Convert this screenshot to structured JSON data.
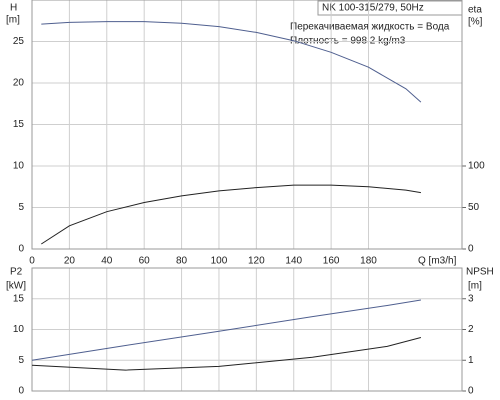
{
  "chart_data": [
    {
      "type": "line",
      "title": "NK 100-315/279, 50Hz",
      "annotations": [
        "Перекачиваемая жидкость = Вода",
        "Плотность = 998.2 kg/m3"
      ],
      "y_label": "H",
      "y_unit": "[m]",
      "y2_label": "eta",
      "y2_unit": "[%]",
      "x_label": "Q [m3/h]",
      "x": [
        5,
        20,
        40,
        60,
        80,
        100,
        120,
        140,
        160,
        180,
        200,
        208
      ],
      "series": [
        {
          "name": "H",
          "color": "#4f5f8f",
          "values": [
            27.1,
            27.3,
            27.4,
            27.4,
            27.2,
            26.8,
            26.1,
            25.1,
            23.7,
            21.9,
            19.3,
            17.7
          ]
        },
        {
          "name": "eta",
          "color": "#222222",
          "axis": "y2",
          "values": [
            6,
            28,
            45,
            56,
            64,
            70,
            74,
            77,
            77,
            75,
            71,
            68
          ]
        }
      ],
      "xlim": [
        0,
        230
      ],
      "xticks": [
        0,
        20,
        40,
        60,
        80,
        100,
        120,
        140,
        160,
        180
      ],
      "ylim": [
        0,
        30
      ],
      "yticks": [
        0,
        5,
        10,
        15,
        20,
        25
      ],
      "y2lim": [
        0,
        300
      ],
      "y2ticks": [
        0,
        50,
        100
      ],
      "grid": true
    },
    {
      "type": "line",
      "y_label": "P2",
      "y_unit": "[kW]",
      "y2_label": "NPSH",
      "y2_unit": "[m]",
      "x": [
        0,
        50,
        100,
        150,
        190,
        208
      ],
      "series": [
        {
          "name": "P2",
          "color": "#4f5f8f",
          "values": [
            5,
            7.4,
            9.7,
            12.1,
            13.9,
            14.8
          ]
        },
        {
          "name": "NPSH",
          "color": "#222222",
          "axis": "y2",
          "values": [
            0.84,
            0.68,
            0.8,
            1.1,
            1.45,
            1.74
          ]
        }
      ],
      "xlim": [
        0,
        230
      ],
      "ylim": [
        0,
        20
      ],
      "yticks": [
        0,
        5,
        10,
        15
      ],
      "y2lim": [
        0,
        4
      ],
      "y2ticks": [
        0,
        1,
        2,
        3
      ],
      "grid": true
    }
  ]
}
